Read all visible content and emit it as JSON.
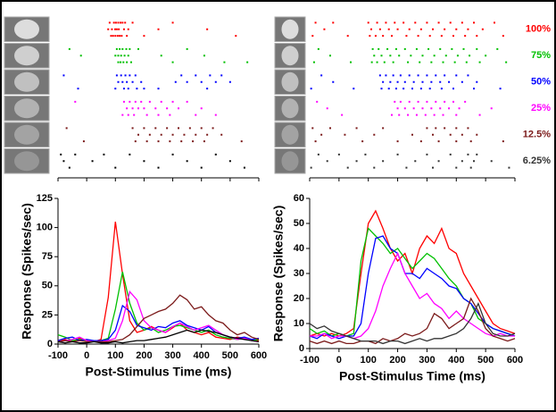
{
  "chart_data": [
    {
      "type": "raster",
      "xlim": [
        -100,
        600
      ],
      "xticks": [
        -100,
        0,
        100,
        200,
        300,
        400,
        500,
        600
      ],
      "series": [
        {
          "color": "#ff0000",
          "trials": [
            [
              80,
              95,
              102,
              110,
              118,
              125,
              134,
              160,
              300
            ],
            [
              75,
              88,
              99,
              105,
              112,
              130,
              145,
              250,
              420
            ],
            [
              85,
              92,
              100,
              108,
              115,
              122,
              140,
              200,
              520
            ]
          ]
        },
        {
          "color": "#00c000",
          "trials": [
            [
              -60,
              105,
              115,
              125,
              138,
              150,
              180,
              350
            ],
            [
              -20,
              100,
              110,
              120,
              132,
              145,
              260,
              410
            ],
            [
              110,
              118,
              128,
              140,
              155,
              300,
              480,
              560
            ]
          ]
        },
        {
          "color": "#0000ff",
          "trials": [
            [
              -80,
              105,
              120,
              135,
              150,
              170,
              330,
              380,
              430,
              470
            ],
            [
              110,
              125,
              140,
              160,
              190,
              310,
              350,
              400,
              450,
              500
            ],
            [
              -30,
              100,
              130,
              145,
              175,
              200,
              250,
              420
            ]
          ]
        },
        {
          "color": "#ff00ff",
          "trials": [
            [
              -40,
              130,
              150,
              170,
              190,
              220,
              260,
              300,
              350
            ],
            [
              140,
              160,
              180,
              200,
              240,
              280,
              320,
              400
            ],
            [
              125,
              145,
              165,
              210,
              250,
              290,
              380,
              450
            ]
          ]
        },
        {
          "color": "#7b1a1a",
          "trials": [
            [
              -70,
              160,
              200,
              240,
              280,
              320,
              360,
              400,
              440
            ],
            [
              180,
              220,
              260,
              300,
              340,
              380,
              420,
              470
            ],
            [
              -10,
              170,
              210,
              250,
              290,
              330,
              370,
              410,
              540
            ]
          ]
        },
        {
          "color": "#000000",
          "trials": [
            [
              -90,
              -40,
              60,
              150,
              300,
              450
            ],
            [
              -80,
              20,
              200,
              350,
              500
            ],
            [
              -60,
              100,
              250,
              400,
              550
            ]
          ]
        }
      ]
    },
    {
      "type": "raster",
      "xlim": [
        -100,
        600
      ],
      "xticks": [
        -100,
        0,
        100,
        200,
        300,
        400,
        500,
        600
      ],
      "series": [
        {
          "name": "100%",
          "color": "#ff0000",
          "trials": [
            [
              -80,
              -20,
              100,
              130,
              160,
              190,
              220,
              260,
              300,
              340,
              380,
              420,
              460,
              530
            ],
            [
              -50,
              110,
              140,
              170,
              200,
              240,
              280,
              320,
              360,
              400,
              440,
              490
            ],
            [
              -90,
              30,
              105,
              125,
              150,
              180,
              230,
              270,
              310,
              350,
              390,
              430,
              470,
              560
            ]
          ]
        },
        {
          "name": "75%",
          "color": "#00c000",
          "trials": [
            [
              -70,
              115,
              135,
              165,
              195,
              225,
              265,
              305,
              345,
              385,
              425,
              470,
              540
            ],
            [
              -30,
              120,
              145,
              175,
              205,
              245,
              285,
              325,
              365,
              405,
              445,
              500
            ],
            [
              -85,
              40,
              112,
              130,
              155,
              185,
              235,
              275,
              315,
              355,
              395,
              435,
              480,
              570
            ]
          ]
        },
        {
          "name": "50%",
          "color": "#0000ff",
          "trials": [
            [
              -60,
              140,
              160,
              185,
              210,
              240,
              270,
              300,
              330,
              360,
              400,
              440
            ],
            [
              -20,
              150,
              175,
              200,
              225,
              255,
              285,
              315,
              345,
              375,
              420,
              470
            ],
            [
              -95,
              50,
              145,
              170,
              195,
              220,
              250,
              280,
              310,
              350,
              390,
              460,
              550
            ]
          ]
        },
        {
          "name": "25%",
          "color": "#ff00ff",
          "trials": [
            [
              -75,
              190,
              210,
              240,
              270,
              300,
              330,
              360,
              390,
              430
            ],
            [
              -40,
              200,
              225,
              255,
              285,
              315,
              345,
              375,
              410,
              520
            ],
            [
              10,
              180,
              205,
              235,
              265,
              295,
              325,
              355,
              400,
              480
            ]
          ]
        },
        {
          "name": "12.5%",
          "color": "#7b1a1a",
          "trials": [
            [
              -90,
              -30,
              60,
              150,
              300,
              330,
              360,
              400,
              440
            ],
            [
              -60,
              20,
              120,
              250,
              320,
              380,
              420,
              470
            ],
            [
              -80,
              80,
              200,
              280,
              340,
              400,
              450,
              560
            ]
          ]
        },
        {
          "name": "6.25%",
          "color": "#333333",
          "trials": [
            [
              -70,
              0,
              90,
              200,
              300,
              380,
              440,
              470
            ],
            [
              -40,
              60,
              150,
              260,
              340,
              420,
              460,
              520
            ],
            [
              -95,
              30,
              120,
              230,
              320,
              400,
              450,
              580
            ]
          ]
        }
      ]
    },
    {
      "type": "line",
      "xlabel": "Post-Stimulus Time (ms)",
      "ylabel": "Response (Spikes/sec)",
      "xlim": [
        -100,
        600
      ],
      "xticks": [
        -100,
        0,
        100,
        200,
        300,
        400,
        500,
        600
      ],
      "ylim": [
        0,
        125
      ],
      "yticks": [
        0,
        25,
        50,
        75,
        100,
        125
      ],
      "x": [
        -100,
        -75,
        -50,
        -25,
        0,
        25,
        50,
        75,
        100,
        125,
        150,
        175,
        200,
        225,
        250,
        275,
        300,
        325,
        350,
        375,
        400,
        425,
        450,
        475,
        500,
        525,
        550,
        575,
        600
      ],
      "series": [
        {
          "color": "#ff0000",
          "values": [
            3,
            4,
            2,
            5,
            3,
            2,
            4,
            40,
            105,
            60,
            20,
            10,
            12,
            15,
            12,
            10,
            14,
            18,
            12,
            10,
            8,
            10,
            6,
            5,
            4,
            6,
            5,
            4,
            3
          ]
        },
        {
          "color": "#00c000",
          "values": [
            8,
            6,
            3,
            4,
            3,
            2,
            3,
            5,
            30,
            62,
            35,
            18,
            12,
            14,
            10,
            12,
            15,
            16,
            14,
            12,
            10,
            12,
            8,
            6,
            5,
            4,
            5,
            3,
            4
          ]
        },
        {
          "color": "#0000ff",
          "values": [
            3,
            5,
            6,
            3,
            4,
            3,
            3,
            4,
            12,
            33,
            28,
            16,
            14,
            12,
            15,
            14,
            18,
            20,
            16,
            14,
            12,
            15,
            10,
            8,
            6,
            5,
            6,
            4,
            5
          ]
        },
        {
          "color": "#ff00ff",
          "values": [
            2,
            3,
            4,
            6,
            3,
            2,
            2,
            3,
            5,
            20,
            45,
            38,
            20,
            14,
            12,
            10,
            15,
            18,
            15,
            12,
            14,
            16,
            12,
            8,
            6,
            4,
            5,
            3,
            2
          ]
        },
        {
          "color": "#7b1a1a",
          "values": [
            2,
            3,
            2,
            3,
            2,
            2,
            2,
            2,
            3,
            4,
            8,
            15,
            22,
            25,
            28,
            30,
            35,
            42,
            38,
            30,
            32,
            25,
            20,
            18,
            12,
            8,
            10,
            6,
            4
          ]
        },
        {
          "color": "#000000",
          "values": [
            2,
            1,
            2,
            1,
            1,
            2,
            1,
            1,
            2,
            1,
            2,
            3,
            3,
            4,
            5,
            6,
            8,
            10,
            12,
            10,
            12,
            11,
            10,
            8,
            6,
            5,
            4,
            3,
            2
          ]
        }
      ]
    },
    {
      "type": "line",
      "xlabel": "Post-Stimulus Time (ms)",
      "ylabel": "Response (Spikes/sec)",
      "xlim": [
        -100,
        600
      ],
      "xticks": [
        -100,
        0,
        100,
        200,
        300,
        400,
        500,
        600
      ],
      "ylim": [
        0,
        60
      ],
      "yticks": [
        0,
        10,
        20,
        30,
        40,
        50,
        60
      ],
      "x": [
        -100,
        -75,
        -50,
        -25,
        0,
        25,
        50,
        75,
        100,
        125,
        150,
        175,
        200,
        225,
        250,
        275,
        300,
        325,
        350,
        375,
        400,
        425,
        450,
        475,
        500,
        525,
        550,
        575,
        600
      ],
      "series": [
        {
          "color": "#ff0000",
          "values": [
            5,
            6,
            5,
            6,
            5,
            6,
            8,
            30,
            50,
            55,
            48,
            40,
            35,
            38,
            30,
            40,
            45,
            42,
            48,
            40,
            38,
            30,
            25,
            20,
            15,
            10,
            8,
            7,
            6
          ]
        },
        {
          "color": "#00c000",
          "values": [
            8,
            6,
            7,
            5,
            6,
            5,
            6,
            35,
            48,
            45,
            42,
            38,
            40,
            36,
            32,
            35,
            38,
            36,
            32,
            28,
            25,
            20,
            18,
            12,
            10,
            8,
            7,
            6,
            5
          ]
        },
        {
          "color": "#0000ff",
          "values": [
            5,
            4,
            6,
            5,
            4,
            5,
            5,
            10,
            30,
            44,
            45,
            40,
            38,
            30,
            30,
            28,
            32,
            30,
            28,
            25,
            24,
            20,
            18,
            14,
            10,
            8,
            7,
            6,
            5
          ]
        },
        {
          "color": "#ff00ff",
          "values": [
            5,
            5,
            6,
            4,
            5,
            5,
            4,
            5,
            8,
            15,
            25,
            32,
            38,
            30,
            25,
            20,
            22,
            18,
            16,
            12,
            15,
            12,
            10,
            8,
            6,
            5,
            6,
            5,
            5
          ]
        },
        {
          "color": "#7b1a1a",
          "values": [
            3,
            2,
            3,
            2,
            3,
            2,
            2,
            3,
            3,
            2,
            4,
            3,
            4,
            6,
            5,
            6,
            8,
            14,
            12,
            8,
            10,
            12,
            20,
            15,
            8,
            5,
            4,
            3,
            4
          ]
        },
        {
          "color": "#333333",
          "values": [
            10,
            8,
            9,
            7,
            6,
            5,
            4,
            3,
            3,
            3,
            2,
            3,
            3,
            2,
            3,
            4,
            3,
            4,
            4,
            5,
            6,
            8,
            12,
            18,
            10,
            6,
            5,
            5,
            6
          ]
        }
      ]
    }
  ]
}
